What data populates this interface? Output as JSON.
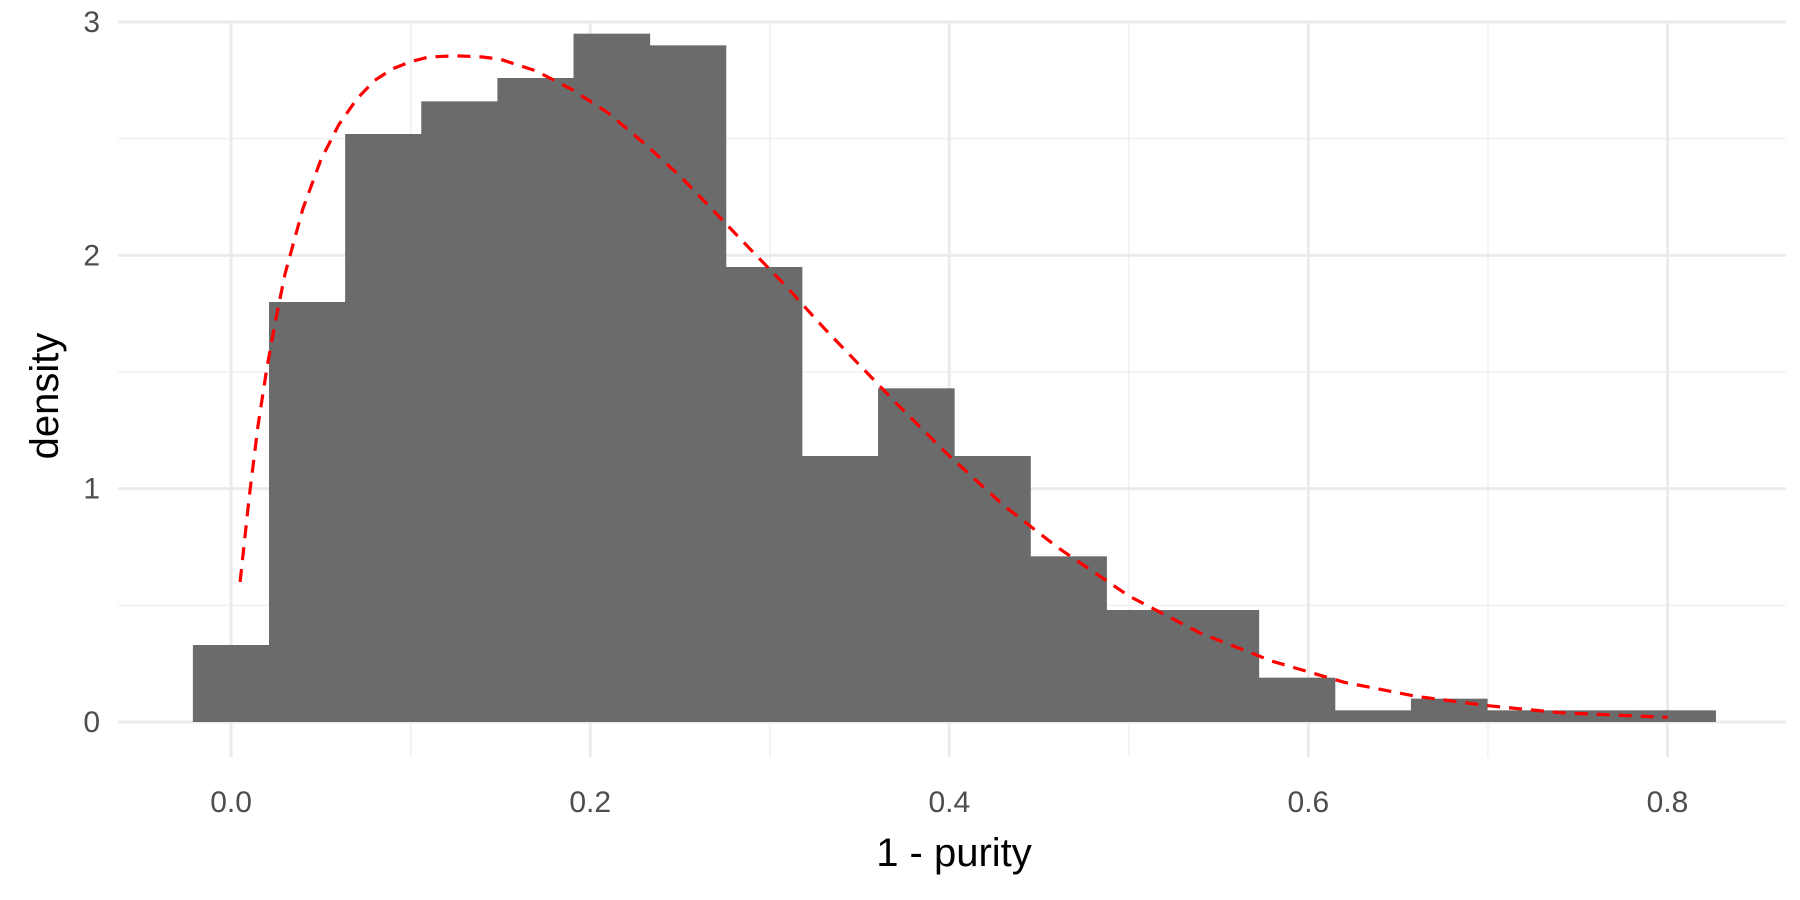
{
  "chart_data": {
    "type": "bar",
    "subtype": "histogram",
    "title": "",
    "xlabel": "1 - purity",
    "ylabel": "density",
    "xlim": [
      -0.063,
      0.866
    ],
    "ylim": [
      -0.15,
      3.0
    ],
    "x_ticks": [
      0.0,
      0.2,
      0.4,
      0.6,
      0.8
    ],
    "x_tick_labels": [
      "0.0",
      "0.2",
      "0.4",
      "0.6",
      "0.8"
    ],
    "x_minor_ticks": [
      0.1,
      0.3,
      0.5,
      0.7
    ],
    "y_ticks": [
      0,
      1,
      2,
      3
    ],
    "y_tick_labels": [
      "0",
      "1",
      "2",
      "3"
    ],
    "y_minor_ticks": [
      0.5,
      1.5,
      2.5
    ],
    "grid": true,
    "bar_color": "#6b6b6b",
    "bins": [
      {
        "x0": -0.0213,
        "x1": 0.0211,
        "density": 0.33
      },
      {
        "x0": 0.0211,
        "x1": 0.0635,
        "density": 1.8
      },
      {
        "x0": 0.0635,
        "x1": 0.1059,
        "density": 2.52
      },
      {
        "x0": 0.1059,
        "x1": 0.1483,
        "density": 2.66
      },
      {
        "x0": 0.1483,
        "x1": 0.1907,
        "density": 2.76
      },
      {
        "x0": 0.1907,
        "x1": 0.2331,
        "density": 2.95
      },
      {
        "x0": 0.2331,
        "x1": 0.2755,
        "density": 2.9
      },
      {
        "x0": 0.2755,
        "x1": 0.3179,
        "density": 1.95
      },
      {
        "x0": 0.3179,
        "x1": 0.3603,
        "density": 1.14
      },
      {
        "x0": 0.3603,
        "x1": 0.4027,
        "density": 1.43
      },
      {
        "x0": 0.4027,
        "x1": 0.4451,
        "density": 1.14
      },
      {
        "x0": 0.4451,
        "x1": 0.4875,
        "density": 0.71
      },
      {
        "x0": 0.4875,
        "x1": 0.5299,
        "density": 0.48
      },
      {
        "x0": 0.5299,
        "x1": 0.5723,
        "density": 0.48
      },
      {
        "x0": 0.5723,
        "x1": 0.6147,
        "density": 0.19
      },
      {
        "x0": 0.6147,
        "x1": 0.6571,
        "density": 0.05
      },
      {
        "x0": 0.6571,
        "x1": 0.6995,
        "density": 0.1
      },
      {
        "x0": 0.6995,
        "x1": 0.7419,
        "density": 0.05
      },
      {
        "x0": 0.7419,
        "x1": 0.7843,
        "density": 0.05
      },
      {
        "x0": 0.7843,
        "x1": 0.8267,
        "density": 0.05
      }
    ],
    "fitted_curve": {
      "style": "dashed",
      "color": "#ff0000",
      "x": [
        0.005,
        0.01,
        0.015,
        0.02,
        0.025,
        0.03,
        0.04,
        0.05,
        0.06,
        0.07,
        0.08,
        0.09,
        0.1,
        0.11,
        0.125,
        0.14,
        0.15,
        0.17,
        0.19,
        0.21,
        0.23,
        0.25,
        0.27,
        0.29,
        0.31,
        0.33,
        0.35,
        0.37,
        0.4,
        0.43,
        0.46,
        0.5,
        0.54,
        0.58,
        0.62,
        0.66,
        0.7,
        0.74,
        0.77,
        0.8
      ],
      "y": [
        0.6,
        0.96,
        1.27,
        1.52,
        1.73,
        1.92,
        2.2,
        2.41,
        2.56,
        2.67,
        2.75,
        2.8,
        2.83,
        2.85,
        2.855,
        2.85,
        2.84,
        2.79,
        2.71,
        2.61,
        2.48,
        2.34,
        2.18,
        2.02,
        1.86,
        1.69,
        1.53,
        1.37,
        1.14,
        0.93,
        0.75,
        0.54,
        0.38,
        0.26,
        0.17,
        0.11,
        0.07,
        0.04,
        0.03,
        0.02
      ]
    }
  }
}
